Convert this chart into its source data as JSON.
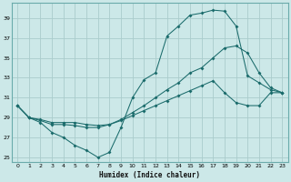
{
  "xlabel": "Humidex (Indice chaleur)",
  "bg_color": "#cce8e8",
  "grid_color": "#aacccc",
  "line_color": "#1a6b6b",
  "xlim": [
    -0.5,
    23.5
  ],
  "ylim": [
    24.5,
    40.5
  ],
  "xticks": [
    0,
    1,
    2,
    3,
    4,
    5,
    6,
    7,
    8,
    9,
    10,
    11,
    12,
    13,
    14,
    15,
    16,
    17,
    18,
    19,
    20,
    21,
    22,
    23
  ],
  "yticks": [
    25,
    27,
    29,
    31,
    33,
    35,
    37,
    39
  ],
  "series1_x": [
    0,
    1,
    2,
    3,
    4,
    5,
    6,
    7,
    8,
    9,
    10,
    11,
    12,
    13,
    14,
    15,
    16,
    17,
    18,
    19,
    20,
    21,
    22,
    23
  ],
  "series1_y": [
    30.2,
    29.0,
    28.5,
    27.5,
    27.0,
    26.2,
    25.7,
    25.0,
    25.5,
    28.0,
    31.0,
    32.8,
    33.5,
    37.2,
    38.2,
    39.3,
    39.5,
    39.8,
    39.7,
    38.2,
    33.2,
    32.5,
    31.8,
    31.5
  ],
  "series2_x": [
    0,
    1,
    2,
    3,
    4,
    5,
    6,
    7,
    8,
    9,
    10,
    11,
    12,
    13,
    14,
    15,
    16,
    17,
    18,
    19,
    20,
    21,
    22,
    23
  ],
  "series2_y": [
    30.2,
    29.0,
    28.7,
    28.3,
    28.3,
    28.2,
    28.0,
    28.0,
    28.3,
    28.8,
    29.5,
    30.2,
    31.0,
    31.8,
    32.5,
    33.5,
    34.0,
    35.0,
    36.0,
    36.2,
    35.5,
    33.5,
    32.0,
    31.5
  ],
  "series3_x": [
    0,
    1,
    2,
    3,
    4,
    5,
    6,
    7,
    8,
    9,
    10,
    11,
    12,
    13,
    14,
    15,
    16,
    17,
    18,
    19,
    20,
    21,
    22,
    23
  ],
  "series3_y": [
    30.2,
    29.0,
    28.8,
    28.5,
    28.5,
    28.5,
    28.3,
    28.2,
    28.3,
    28.7,
    29.2,
    29.7,
    30.2,
    30.7,
    31.2,
    31.7,
    32.2,
    32.7,
    31.5,
    30.5,
    30.2,
    30.2,
    31.5,
    31.5
  ]
}
